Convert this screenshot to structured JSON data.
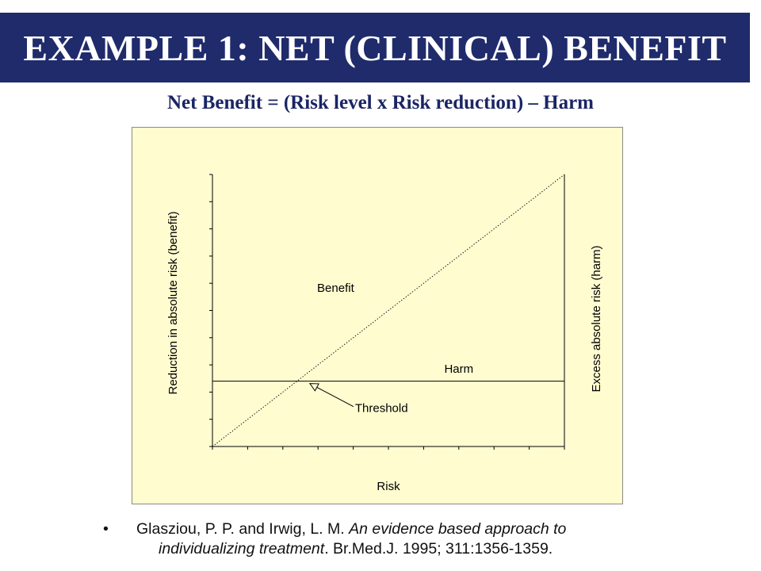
{
  "slide": {
    "title": "EXAMPLE 1: NET (CLINICAL) BENEFIT",
    "formula": "Net Benefit = (Risk level x Risk reduction) – Harm"
  },
  "chart_data": {
    "type": "line",
    "title": "",
    "xlabel": "Risk",
    "ylabel_left": "Reduction in absolute risk (benefit)",
    "ylabel_right": "Excess absolute risk (harm)",
    "xlim": [
      0,
      1
    ],
    "ylim": [
      0,
      1
    ],
    "grid": false,
    "tick_count_x": 10,
    "tick_count_y": 10,
    "background_color": "#fffcd0",
    "series": [
      {
        "name": "Benefit",
        "style": "dotted",
        "x": [
          0,
          1
        ],
        "y": [
          0,
          1
        ]
      },
      {
        "name": "Harm",
        "style": "solid",
        "x": [
          0,
          1
        ],
        "y": [
          0.24,
          0.24
        ]
      }
    ],
    "annotations": [
      {
        "text": "Threshold",
        "points_to": {
          "x": 0.27,
          "y": 0.24
        }
      }
    ]
  },
  "citation": {
    "bullet": "•",
    "authors": "Glasziou, P. P. and Irwig, L. M.",
    "article_title": "An evidence based approach to",
    "article_title_cont": "individualizing treatment",
    "journal_details": ". Br.Med.J. 1995; 311:1356-1359."
  },
  "colors": {
    "title_bar": "#1f2b6b",
    "title_text": "#ffffff",
    "subtitle_text": "#1a2563",
    "chart_background": "#fffcd0"
  }
}
